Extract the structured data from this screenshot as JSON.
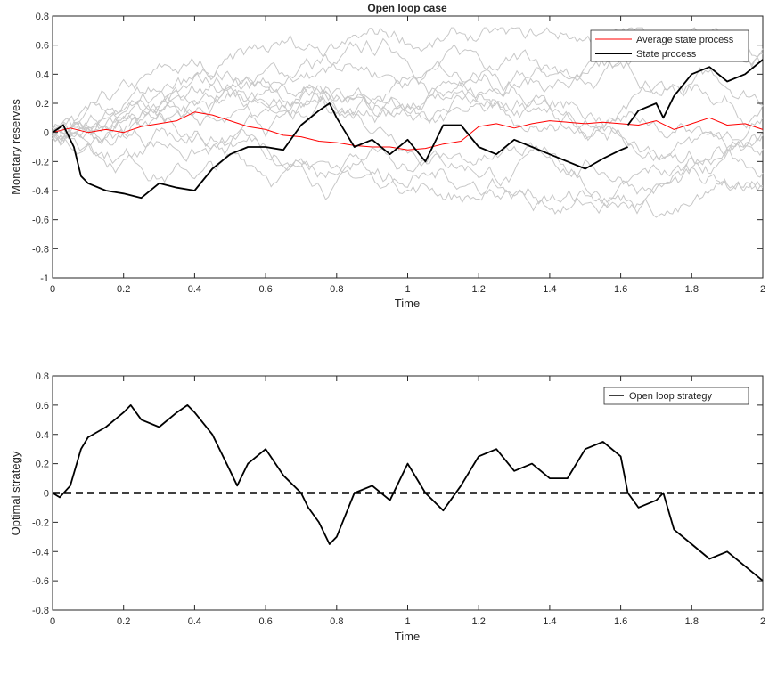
{
  "chart_data": [
    {
      "type": "line",
      "title": "Open loop case",
      "xlabel": "Time",
      "ylabel": "Monetary reserves",
      "xlim": [
        0,
        2
      ],
      "ylim": [
        -1,
        0.8
      ],
      "xticks": [
        0,
        0.2,
        0.4,
        0.6,
        0.8,
        1,
        1.2,
        1.4,
        1.6,
        1.8,
        2
      ],
      "xtick_labels": [
        "0",
        "0.2",
        "0.4",
        "0.6",
        "0.8",
        "1",
        "1.2",
        "1.4",
        "1.6",
        "1.8",
        "2"
      ],
      "yticks": [
        -1,
        -0.8,
        -0.6,
        -0.4,
        -0.2,
        0,
        0.2,
        0.4,
        0.6,
        0.8
      ],
      "ytick_labels": [
        "-1",
        "-0.8",
        "-0.6",
        "-0.4",
        "-0.2",
        "0",
        "0.2",
        "0.4",
        "0.6",
        "0.8"
      ],
      "grid": false,
      "legend_position": "top-right",
      "series": [
        {
          "name": "Average state process",
          "color": "#ff0000",
          "x": [
            0,
            0.05,
            0.1,
            0.15,
            0.2,
            0.25,
            0.3,
            0.35,
            0.4,
            0.45,
            0.5,
            0.55,
            0.6,
            0.65,
            0.7,
            0.75,
            0.8,
            0.85,
            0.9,
            0.95,
            1.0,
            1.05,
            1.1,
            1.15,
            1.2,
            1.25,
            1.3,
            1.35,
            1.4,
            1.45,
            1.5,
            1.55,
            1.6,
            1.65,
            1.7,
            1.75,
            1.8,
            1.85,
            1.9,
            1.95,
            2.0
          ],
          "y": [
            0.0,
            0.03,
            0.0,
            0.02,
            0.0,
            0.04,
            0.06,
            0.08,
            0.14,
            0.12,
            0.08,
            0.04,
            0.02,
            -0.02,
            -0.03,
            -0.06,
            -0.07,
            -0.09,
            -0.1,
            -0.1,
            -0.12,
            -0.11,
            -0.08,
            -0.06,
            0.04,
            0.06,
            0.03,
            0.06,
            0.08,
            0.07,
            0.06,
            0.07,
            0.06,
            0.05,
            0.08,
            0.02,
            0.06,
            0.1,
            0.05,
            0.06,
            0.02
          ]
        },
        {
          "name": "State process",
          "color": "#000000",
          "x": [
            0,
            0.03,
            0.06,
            0.08,
            0.1,
            0.15,
            0.2,
            0.25,
            0.3,
            0.35,
            0.4,
            0.45,
            0.5,
            0.55,
            0.6,
            0.65,
            0.7,
            0.75,
            0.78,
            0.8,
            0.85,
            0.9,
            0.95,
            1.0,
            1.05,
            1.1,
            1.15,
            1.2,
            1.25,
            1.3,
            1.35,
            1.4,
            1.45,
            1.5,
            1.55,
            1.6,
            1.62
          ],
          "y": [
            0.0,
            0.05,
            -0.1,
            -0.3,
            -0.35,
            -0.4,
            -0.42,
            -0.45,
            -0.35,
            -0.38,
            -0.4,
            -0.25,
            -0.15,
            -0.1,
            -0.1,
            -0.12,
            0.05,
            0.15,
            0.2,
            0.1,
            -0.1,
            -0.05,
            -0.15,
            -0.05,
            -0.2,
            0.05,
            0.05,
            -0.1,
            -0.15,
            -0.05,
            -0.1,
            -0.15,
            -0.2,
            -0.25,
            -0.18,
            -0.12,
            -0.1
          ]
        },
        {
          "name": "",
          "color": "#000000",
          "x": [
            1.62,
            1.65,
            1.7,
            1.72,
            1.75,
            1.8,
            1.85,
            1.9,
            1.95,
            2.0
          ],
          "y": [
            0.05,
            0.15,
            0.2,
            0.1,
            0.25,
            0.4,
            0.45,
            0.35,
            0.4,
            0.5
          ]
        }
      ]
    },
    {
      "type": "line",
      "title": "",
      "xlabel": "Time",
      "ylabel": "Optimal strategy",
      "xlim": [
        0,
        2
      ],
      "ylim": [
        -0.8,
        0.8
      ],
      "xticks": [
        0,
        0.2,
        0.4,
        0.6,
        0.8,
        1,
        1.2,
        1.4,
        1.6,
        1.8,
        2
      ],
      "xtick_labels": [
        "0",
        "0.2",
        "0.4",
        "0.6",
        "0.8",
        "1",
        "1.2",
        "1.4",
        "1.6",
        "1.8",
        "2"
      ],
      "yticks": [
        -0.8,
        -0.6,
        -0.4,
        -0.2,
        0,
        0.2,
        0.4,
        0.6,
        0.8
      ],
      "ytick_labels": [
        "-0.8",
        "-0.6",
        "-0.4",
        "-0.2",
        "0",
        "0.2",
        "0.4",
        "0.6",
        "0.8"
      ],
      "grid": false,
      "legend_position": "top-right",
      "series": [
        {
          "name": "Open loop strategy",
          "color": "#000000",
          "x": [
            0,
            0.02,
            0.05,
            0.08,
            0.1,
            0.15,
            0.2,
            0.22,
            0.25,
            0.3,
            0.35,
            0.38,
            0.4,
            0.45,
            0.5,
            0.52,
            0.55,
            0.6,
            0.65,
            0.7,
            0.72,
            0.75,
            0.78,
            0.8,
            0.85,
            0.9,
            0.95,
            1.0,
            1.05,
            1.1,
            1.15,
            1.2,
            1.25,
            1.3,
            1.35,
            1.4,
            1.45,
            1.5,
            1.55,
            1.6,
            1.62,
            1.65,
            1.7,
            1.72,
            1.75,
            1.8,
            1.85,
            1.9,
            1.95,
            2.0
          ],
          "y": [
            0.0,
            -0.03,
            0.05,
            0.3,
            0.38,
            0.45,
            0.55,
            0.6,
            0.5,
            0.45,
            0.55,
            0.6,
            0.55,
            0.4,
            0.15,
            0.05,
            0.2,
            0.3,
            0.12,
            0.0,
            -0.1,
            -0.2,
            -0.35,
            -0.3,
            0.0,
            0.05,
            -0.05,
            0.2,
            0.0,
            -0.12,
            0.05,
            0.25,
            0.3,
            0.15,
            0.2,
            0.1,
            0.1,
            0.3,
            0.35,
            0.25,
            0.0,
            -0.1,
            -0.05,
            0.0,
            -0.25,
            -0.35,
            -0.45,
            -0.4,
            -0.5,
            -0.6
          ]
        },
        {
          "name": "",
          "color": "#000000",
          "dashed": true,
          "x": [
            0,
            2
          ],
          "y": [
            0,
            0
          ]
        }
      ]
    }
  ]
}
